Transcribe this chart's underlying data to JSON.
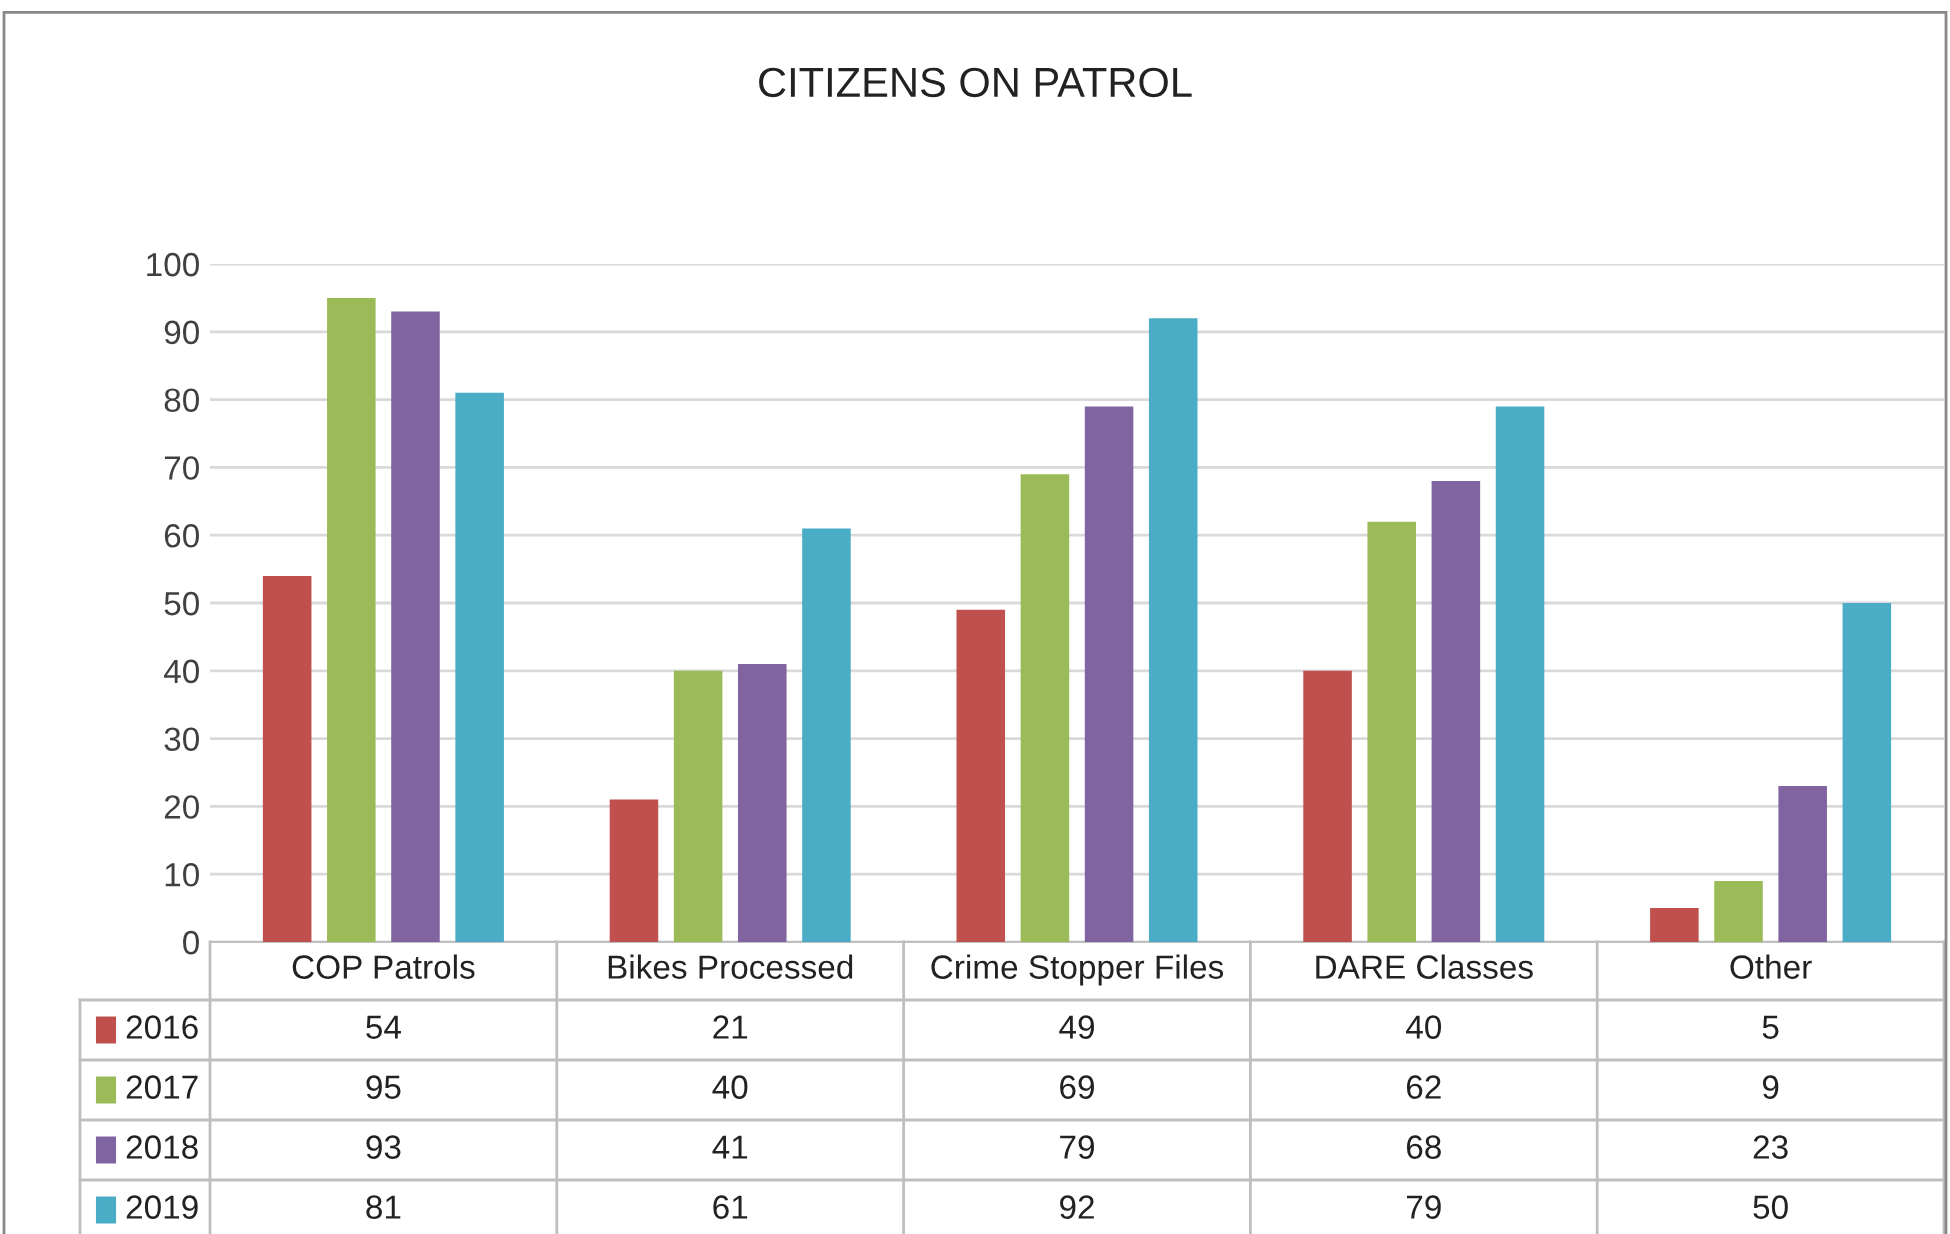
{
  "chart_data": {
    "type": "bar",
    "title": "CITIZENS ON PATROL",
    "categories": [
      "COP Patrols",
      "Bikes Processed",
      "Crime Stopper Files",
      "DARE Classes",
      "Other"
    ],
    "series": [
      {
        "name": "2016",
        "color": "#c0504d",
        "values": [
          54,
          21,
          49,
          40,
          5
        ]
      },
      {
        "name": "2017",
        "color": "#9bbb59",
        "values": [
          95,
          40,
          69,
          62,
          9
        ]
      },
      {
        "name": "2018",
        "color": "#8064a2",
        "values": [
          93,
          41,
          79,
          68,
          23
        ]
      },
      {
        "name": "2019",
        "color": "#4bacc6",
        "values": [
          81,
          61,
          92,
          79,
          50
        ]
      }
    ],
    "ylim": [
      0,
      100
    ],
    "yticks": [
      0,
      10,
      20,
      30,
      40,
      50,
      60,
      70,
      80,
      90,
      100
    ],
    "grid": "y",
    "data_labels": true,
    "legend": "bottom left"
  }
}
